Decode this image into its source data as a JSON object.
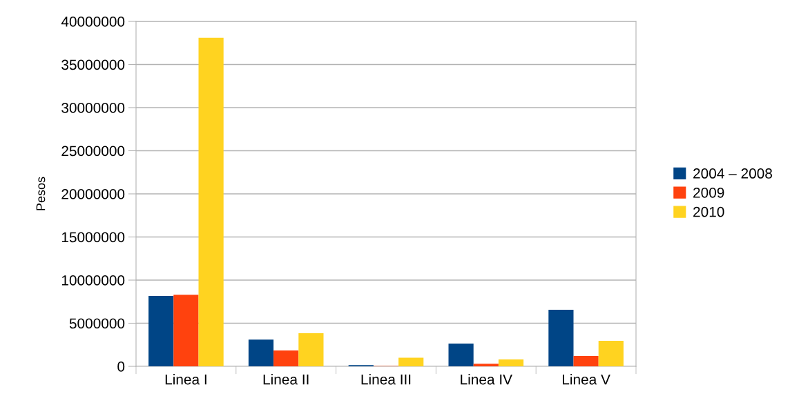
{
  "chart_data": {
    "type": "bar",
    "ylabel": "Pesos",
    "categories": [
      "Linea I",
      "Linea II",
      "Linea III",
      "Linea IV",
      "Linea V"
    ],
    "series": [
      {
        "name": "2004 – 2008",
        "color": "#004586",
        "values": [
          8160000,
          3100000,
          150000,
          2640000,
          6560000
        ]
      },
      {
        "name": "2009",
        "color": "#ff420e",
        "values": [
          8300000,
          1840000,
          50000,
          300000,
          1200000
        ]
      },
      {
        "name": "2010",
        "color": "#ffd320",
        "values": [
          38100000,
          3840000,
          1000000,
          800000,
          2960000
        ]
      }
    ],
    "ylim": [
      0,
      40000000
    ],
    "yticks": [
      0,
      5000000,
      10000000,
      15000000,
      20000000,
      25000000,
      30000000,
      35000000,
      40000000
    ],
    "grid": "y",
    "legend": "right"
  }
}
